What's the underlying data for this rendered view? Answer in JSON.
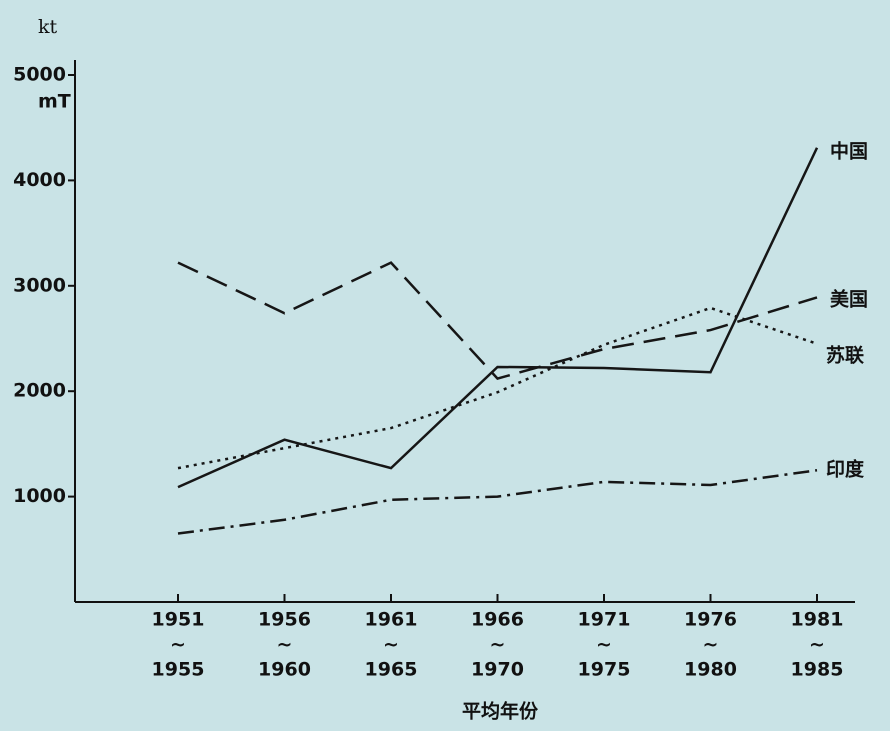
{
  "chart_data": {
    "type": "line",
    "y_unit_top": "kt",
    "y_unit_bottom": "mT",
    "xlabel": "平均年份",
    "categories": [
      [
        "1951",
        "~",
        "1955"
      ],
      [
        "1956",
        "~",
        "1960"
      ],
      [
        "1961",
        "~",
        "1965"
      ],
      [
        "1966",
        "~",
        "1970"
      ],
      [
        "1971",
        "~",
        "1975"
      ],
      [
        "1976",
        "~",
        "1980"
      ],
      [
        "1981",
        "~",
        "1985"
      ]
    ],
    "ylim": [
      0,
      5000
    ],
    "yticks": [
      1000,
      2000,
      3000,
      4000,
      5000
    ],
    "series": [
      {
        "name": "中国",
        "color": "#161616",
        "style": "solid",
        "values": [
          1090,
          1540,
          1270,
          2230,
          2220,
          2180,
          4310
        ]
      },
      {
        "name": "美国",
        "color": "#161616",
        "style": "dashed",
        "values": [
          3220,
          2740,
          3220,
          2120,
          2400,
          2580,
          2890
        ]
      },
      {
        "name": "苏联",
        "color": "#161616",
        "style": "dotted",
        "values": [
          1270,
          1460,
          1650,
          1990,
          2440,
          2790,
          2450
        ]
      },
      {
        "name": "印度",
        "color": "#161616",
        "style": "dashdot",
        "values": [
          650,
          780,
          970,
          1000,
          1140,
          1110,
          1250
        ]
      }
    ]
  }
}
